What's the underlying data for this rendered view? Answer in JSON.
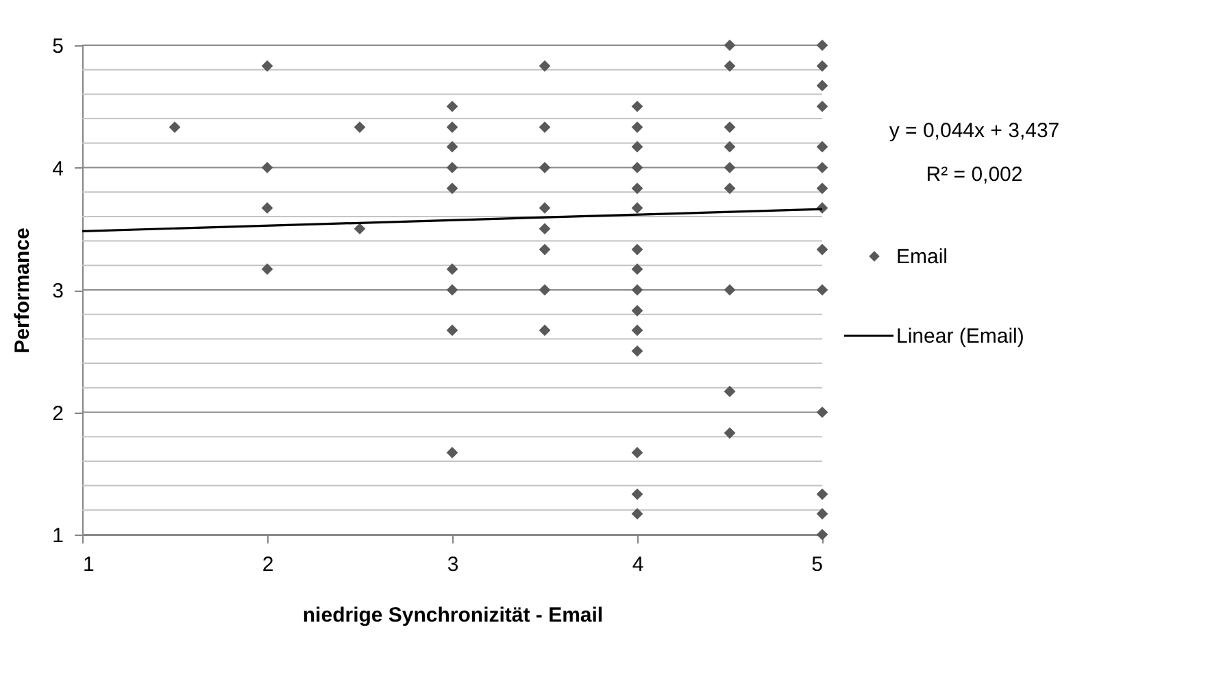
{
  "chart_data": {
    "type": "scatter",
    "xlabel": "niedrige Synchronizität - Email",
    "ylabel": "Performance",
    "xlim": [
      1,
      5
    ],
    "xticks": [
      1,
      2,
      3,
      4,
      5
    ],
    "ylim": [
      1,
      5
    ],
    "yticks": [
      1,
      {
        "value": 1.2,
        "label": null
      },
      {
        "value": 1.4,
        "label": null
      },
      {
        "value": 1.6,
        "label": null
      },
      {
        "value": 1.8,
        "label": null
      },
      2,
      {
        "value": 2.2,
        "label": null
      },
      {
        "value": 2.4,
        "label": null
      },
      {
        "value": 2.6,
        "label": null
      },
      {
        "value": 2.8,
        "label": null
      },
      3,
      {
        "value": 3.2,
        "label": null
      },
      {
        "value": 3.4,
        "label": null
      },
      {
        "value": 3.6,
        "label": null
      },
      {
        "value": 3.8,
        "label": null
      },
      4,
      {
        "value": 4.2,
        "label": null
      },
      {
        "value": 4.4,
        "label": null
      },
      {
        "value": 4.6,
        "label": null
      },
      {
        "value": 4.8,
        "label": null
      },
      5
    ],
    "grid": "y",
    "legend": "right",
    "marker": "diamond",
    "annotations": [
      "y = 0,044x + 3,437",
      "R² = 0,002"
    ],
    "series": [
      {
        "name": "Email",
        "color": "#595959",
        "x": [
          1.5,
          2,
          2,
          2,
          2,
          2.5,
          2.5,
          3,
          3,
          3,
          3,
          3,
          3,
          3,
          3,
          3,
          3.5,
          3.5,
          3.5,
          3.5,
          3.5,
          3.5,
          3.5,
          3.5,
          4,
          4,
          4,
          4,
          4,
          4,
          4,
          4,
          4,
          4,
          4,
          4,
          4,
          4,
          4,
          4.5,
          4.5,
          4.5,
          4.5,
          4.5,
          4.5,
          4.5,
          4.5,
          4.5,
          5,
          5,
          5,
          5,
          5,
          5,
          5,
          5,
          5,
          5,
          5,
          5,
          5,
          5
        ],
        "values": [
          4.33,
          4.83,
          4,
          3.67,
          3.17,
          4.33,
          3.5,
          4.5,
          4.33,
          4.17,
          4,
          3.83,
          3.17,
          3,
          2.67,
          1.67,
          4.83,
          4.33,
          4,
          3.67,
          3.5,
          3.33,
          3,
          2.67,
          4.5,
          4.33,
          4.17,
          4,
          3.83,
          3.67,
          3.33,
          3.17,
          3,
          2.83,
          2.67,
          2.5,
          1.67,
          1.33,
          1.17,
          5,
          4.83,
          4.33,
          4.17,
          4,
          3.83,
          3,
          2.17,
          1.83,
          5,
          4.83,
          4.67,
          4.5,
          4.17,
          4,
          3.83,
          3.67,
          3.33,
          3,
          2,
          1.33,
          1.17,
          1
        ]
      },
      {
        "name": "Linear (Email)",
        "color": "#000000",
        "type": "line",
        "marker": "none",
        "x": [
          1,
          5
        ],
        "values": [
          3.48,
          3.66
        ]
      }
    ]
  }
}
